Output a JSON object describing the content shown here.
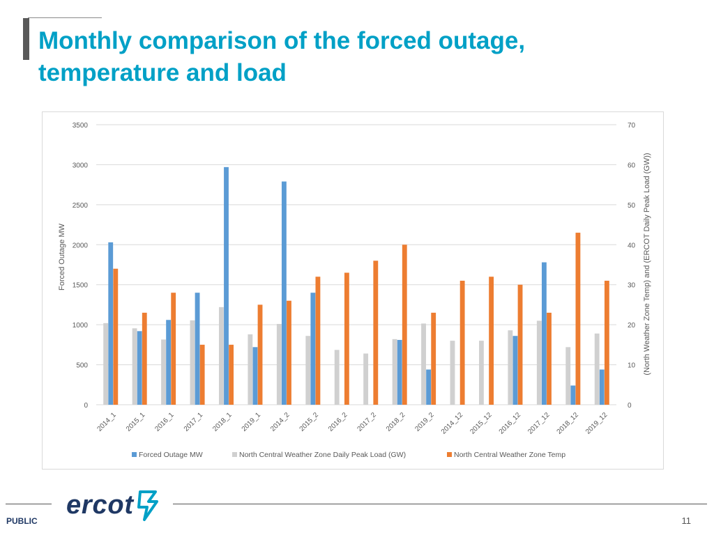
{
  "slide": {
    "title": "Monthly comparison of the forced outage, temperature and load",
    "footer_label": "PUBLIC",
    "page_number": "11",
    "logo_text": "ercot"
  },
  "colors": {
    "title": "#00a0c6",
    "forced_outage": "#5b9bd5",
    "peak_load": "#d0d0d0",
    "temp": "#ed7d31",
    "grid": "#d9d9d9",
    "text": "#595959",
    "logo": "#1f3864",
    "logo_accent": "#00a0c6"
  },
  "chart_data": {
    "type": "bar",
    "title": "",
    "categories": [
      "2014_1",
      "2015_1",
      "2016_1",
      "2017_1",
      "2018_1",
      "2019_1",
      "2014_2",
      "2015_2",
      "2016_2",
      "2017_2",
      "2018_2",
      "2019_2",
      "2014_12",
      "2015_12",
      "2016_12",
      "2017_12",
      "2018_12",
      "2019_12"
    ],
    "ylabel": "Forced Outage MW",
    "y2label": "(North Weather Zone Temp) and (ERCOT Daily Peak Load (GW))",
    "ylim": [
      0,
      3500
    ],
    "y2lim": [
      0,
      70
    ],
    "yticks": [
      "0",
      "500",
      "1000",
      "1500",
      "2000",
      "2500",
      "3000",
      "3500"
    ],
    "y2ticks": [
      "0",
      "10",
      "20",
      "30",
      "40",
      "50",
      "60",
      "70"
    ],
    "grid": true,
    "legend_position": "bottom",
    "series": [
      {
        "name": "Forced Outage MW",
        "axis": "left",
        "values": [
          2030,
          920,
          1060,
          1400,
          2970,
          720,
          2790,
          1400,
          0,
          0,
          810,
          440,
          0,
          0,
          860,
          1780,
          240,
          440
        ]
      },
      {
        "name": "North Central Weather Zone Daily Peak Load (GW)",
        "axis": "right",
        "values": [
          20.4,
          19.1,
          16.3,
          21.1,
          24.4,
          17.6,
          20.2,
          17.2,
          13.7,
          12.8,
          16.4,
          20.3,
          16.0,
          16.0,
          18.6,
          21.0,
          14.4,
          17.8
        ]
      },
      {
        "name": "North Central Weather Zone Temp",
        "axis": "right",
        "values": [
          34,
          23,
          28,
          15,
          15,
          25,
          26,
          32,
          33,
          36,
          40,
          23,
          31,
          32,
          30,
          23,
          43,
          31
        ]
      }
    ]
  }
}
